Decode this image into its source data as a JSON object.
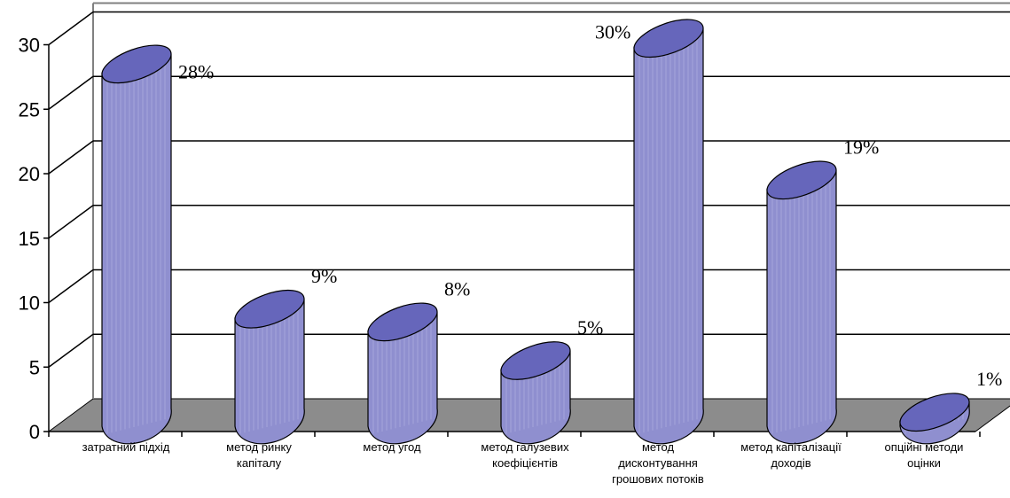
{
  "chart_data": {
    "type": "bar",
    "style": "3d-cylinder",
    "categories": [
      [
        "затратний підхід"
      ],
      [
        "метод ринку",
        "капіталу"
      ],
      [
        "метод угод"
      ],
      [
        "метод галузевих",
        "коефіцієнтів"
      ],
      [
        "метод",
        "дисконтування",
        "грошових потоків"
      ],
      [
        "метод капіталізації",
        "доходів"
      ],
      [
        "опційні методи",
        "оцінки"
      ]
    ],
    "values": [
      28,
      9,
      8,
      5,
      30,
      19,
      1
    ],
    "data_labels": [
      "28%",
      "9%",
      "8%",
      "5%",
      "30%",
      "19%",
      "1%"
    ],
    "yticks": [
      "0",
      "5",
      "10",
      "15",
      "20",
      "25",
      "30"
    ],
    "ylim": [
      0,
      30
    ],
    "grid": true,
    "legend": "none",
    "colors": {
      "bar_fill": "#8f8fcf",
      "bar_top": "#6666bb",
      "bar_stripe": "#b4b4e4",
      "floor": "#8c8c8c",
      "grid": "#000000",
      "wall_edge": "#808080"
    }
  }
}
